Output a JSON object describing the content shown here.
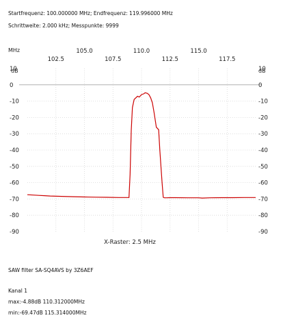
{
  "header": {
    "line1": "Startfrequenz: 100.000000 MHz; Endfrequenz: 119.996000 MHz",
    "line2": "Schrittweite: 2.000 kHz; Messpunkte: 9999"
  },
  "footer": {
    "title": "SAW filter SA-SQ4AVS by 3Z6AEF",
    "channel": "Kanal 1",
    "max": "max:-4.88dB 110.312000MHz",
    "min": "min:-69.47dB 115.314000MHz"
  },
  "chart_data": {
    "type": "line",
    "xlabel": "X-Raster: 2.5 MHz",
    "x_unit": "MHz",
    "y_unit": "dB",
    "xlim": [
      100.0,
      119.996
    ],
    "ylim": [
      -90,
      10
    ],
    "x_ticks_top": [
      "105.0",
      "110.0",
      "115.0"
    ],
    "x_ticks_bottom": [
      "102.5",
      "107.5",
      "112.5",
      "117.5"
    ],
    "y_ticks": [
      "10",
      "0",
      "-10",
      "-20",
      "-30",
      "-40",
      "-50",
      "-60",
      "-70",
      "-80",
      "-90"
    ],
    "grid": true,
    "series": [
      {
        "color": "#cc0000",
        "x": [
          100.0,
          100.5,
          101.0,
          101.5,
          102.0,
          103.0,
          104.0,
          105.0,
          106.0,
          107.0,
          108.0,
          108.5,
          108.9,
          109.0,
          109.1,
          109.2,
          109.35,
          109.5,
          109.65,
          109.8,
          110.0,
          110.2,
          110.312,
          110.5,
          110.65,
          110.8,
          110.95,
          111.1,
          111.3,
          111.5,
          111.6,
          111.8,
          111.9,
          112.0,
          112.2,
          112.5,
          113.0,
          114.0,
          115.0,
          115.314,
          116.0,
          117.0,
          118.0,
          119.0,
          119.996
        ],
        "y": [
          -67.4,
          -67.6,
          -67.8,
          -68.0,
          -68.2,
          -68.4,
          -68.6,
          -68.8,
          -68.9,
          -69.0,
          -69.1,
          -69.1,
          -69.1,
          -55.0,
          -28.0,
          -14.0,
          -9.0,
          -8.0,
          -7.0,
          -7.5,
          -6.0,
          -5.5,
          -4.88,
          -5.2,
          -6.0,
          -8.0,
          -11.0,
          -17.0,
          -26.0,
          -27.5,
          -40.0,
          -60.0,
          -69.0,
          -69.3,
          -69.3,
          -69.2,
          -69.2,
          -69.3,
          -69.3,
          -69.47,
          -69.3,
          -69.2,
          -69.2,
          -69.1,
          -69.1
        ]
      }
    ]
  }
}
